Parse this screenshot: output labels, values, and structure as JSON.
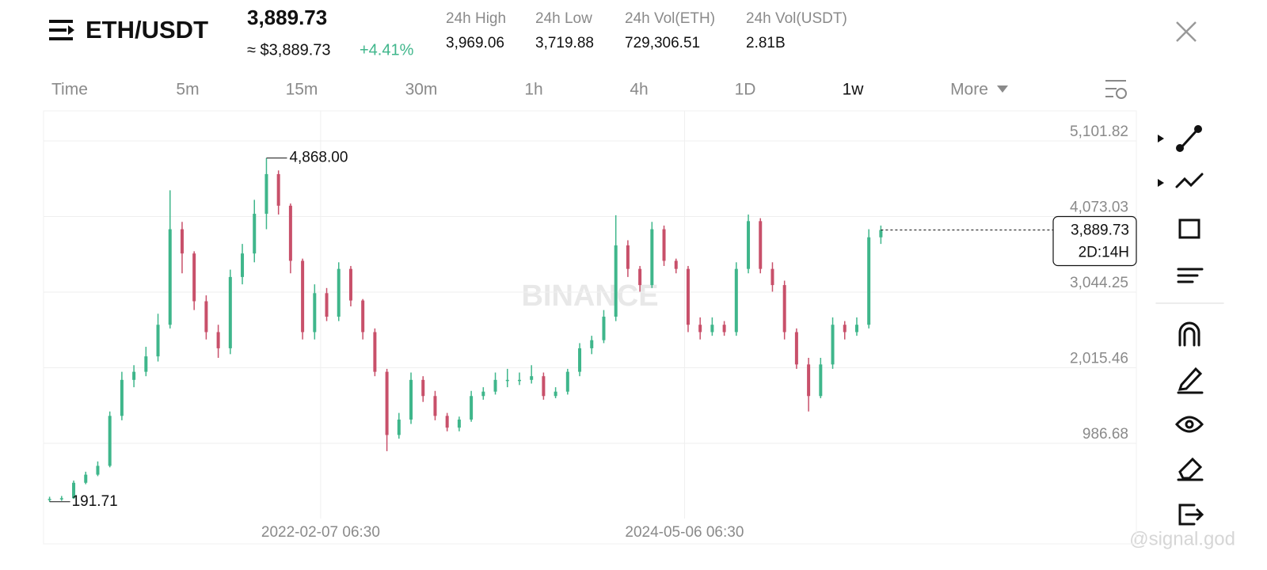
{
  "header": {
    "pair": "ETH/USDT",
    "price": "3,889.73",
    "price_usd": "≈ $3,889.73",
    "change": "+4.41%",
    "stats": [
      {
        "label": "24h High",
        "value": "3,969.06"
      },
      {
        "label": "24h Low",
        "value": "3,719.88"
      },
      {
        "label": "24h Vol(ETH)",
        "value": "729,306.51"
      },
      {
        "label": "24h Vol(USDT)",
        "value": "2.81B"
      }
    ]
  },
  "timeframes": [
    "Time",
    "5m",
    "15m",
    "30m",
    "1h",
    "4h",
    "1D",
    "1w",
    "More"
  ],
  "watermark": "BINANCE",
  "credit": "@signal.god",
  "chart_data": {
    "type": "candlestick",
    "open": [
      215,
      230,
      240,
      450,
      560,
      680,
      1360,
      1850,
      1960,
      2170,
      2600,
      3900,
      3570,
      2920,
      2500,
      2280,
      3250,
      3570,
      4110,
      4650,
      4220,
      3470,
      2500,
      3030,
      2710,
      3360,
      2930,
      2500,
      1960,
      1100,
      1310,
      1850,
      1630,
      1360,
      1200,
      1310,
      1630,
      1690,
      1850,
      1850,
      1850,
      1900,
      1630,
      1690,
      1960,
      2280,
      2390,
      2710,
      3680,
      3360,
      3140,
      3900,
      3470,
      3360,
      2600,
      2500,
      2600,
      2500,
      3360,
      4010,
      3360,
      3140,
      2500,
      2060,
      1630,
      2060,
      2600,
      2500,
      2600,
      3790
    ],
    "high": [
      260,
      270,
      480,
      600,
      740,
      1420,
      1960,
      2050,
      2300,
      2750,
      4430,
      4000,
      3600,
      3000,
      2600,
      3350,
      3700,
      4300,
      4868,
      4700,
      4250,
      3500,
      3150,
      3100,
      3450,
      3400,
      2950,
      2550,
      2000,
      1400,
      1950,
      1900,
      1700,
      1400,
      1350,
      1700,
      1750,
      1950,
      2000,
      1950,
      2050,
      1950,
      1750,
      2000,
      2350,
      2450,
      2800,
      4090,
      3750,
      3400,
      4000,
      3950,
      3500,
      3400,
      2700,
      2700,
      2650,
      3450,
      4100,
      4050,
      3450,
      3200,
      2550,
      2150,
      2150,
      2700,
      2650,
      2700,
      3900,
      3950
    ],
    "low": [
      191.71,
      205,
      230,
      430,
      540,
      660,
      1300,
      1750,
      1900,
      2100,
      2550,
      3300,
      2800,
      2400,
      2150,
      2200,
      3150,
      3450,
      3900,
      4100,
      3300,
      2400,
      2400,
      2650,
      2650,
      2850,
      2400,
      1900,
      880,
      1050,
      1250,
      1550,
      1300,
      1150,
      1150,
      1280,
      1580,
      1650,
      1750,
      1780,
      1800,
      1580,
      1600,
      1650,
      1900,
      2200,
      2350,
      2650,
      3250,
      3050,
      3100,
      3400,
      3300,
      2500,
      2400,
      2450,
      2450,
      2450,
      3300,
      3300,
      3050,
      2400,
      2000,
      1420,
      1600,
      2000,
      2400,
      2450,
      2550,
      3700
    ],
    "close": [
      230,
      240,
      450,
      560,
      680,
      1360,
      1850,
      1960,
      2170,
      2600,
      3900,
      3570,
      2920,
      2500,
      2280,
      3250,
      3570,
      4110,
      4650,
      4220,
      3470,
      2500,
      3030,
      2710,
      3360,
      2930,
      2500,
      1960,
      1100,
      1310,
      1850,
      1630,
      1360,
      1200,
      1310,
      1630,
      1690,
      1850,
      1850,
      1850,
      1900,
      1630,
      1690,
      1960,
      2280,
      2390,
      2710,
      3680,
      3360,
      3140,
      3900,
      3470,
      3360,
      2600,
      2500,
      2600,
      2500,
      3360,
      4010,
      3360,
      3140,
      2500,
      2060,
      1630,
      2060,
      2600,
      2500,
      2600,
      3790,
      3889.73
    ],
    "up_color": "#3fb68b",
    "down_color": "#c8506a",
    "ylim": [
      -37,
      5511
    ],
    "yticks": [
      {
        "value": 986.68,
        "label": "986.68"
      },
      {
        "value": 2015.46,
        "label": "2,015.46"
      },
      {
        "value": 3044.25,
        "label": "3,044.25"
      },
      {
        "value": 4073.03,
        "label": "4,073.03"
      },
      {
        "value": 5101.82,
        "label": "5,101.82"
      }
    ],
    "xticks": [
      {
        "value": 22.5,
        "label": "2022-02-07 06:30"
      },
      {
        "value": 52.7,
        "label": "2024-05-06 06:30"
      }
    ],
    "high_label": "4,868.00",
    "low_label": "191.71",
    "last_label": "3,889.73",
    "countdown": "2D:14H",
    "grid": true
  }
}
